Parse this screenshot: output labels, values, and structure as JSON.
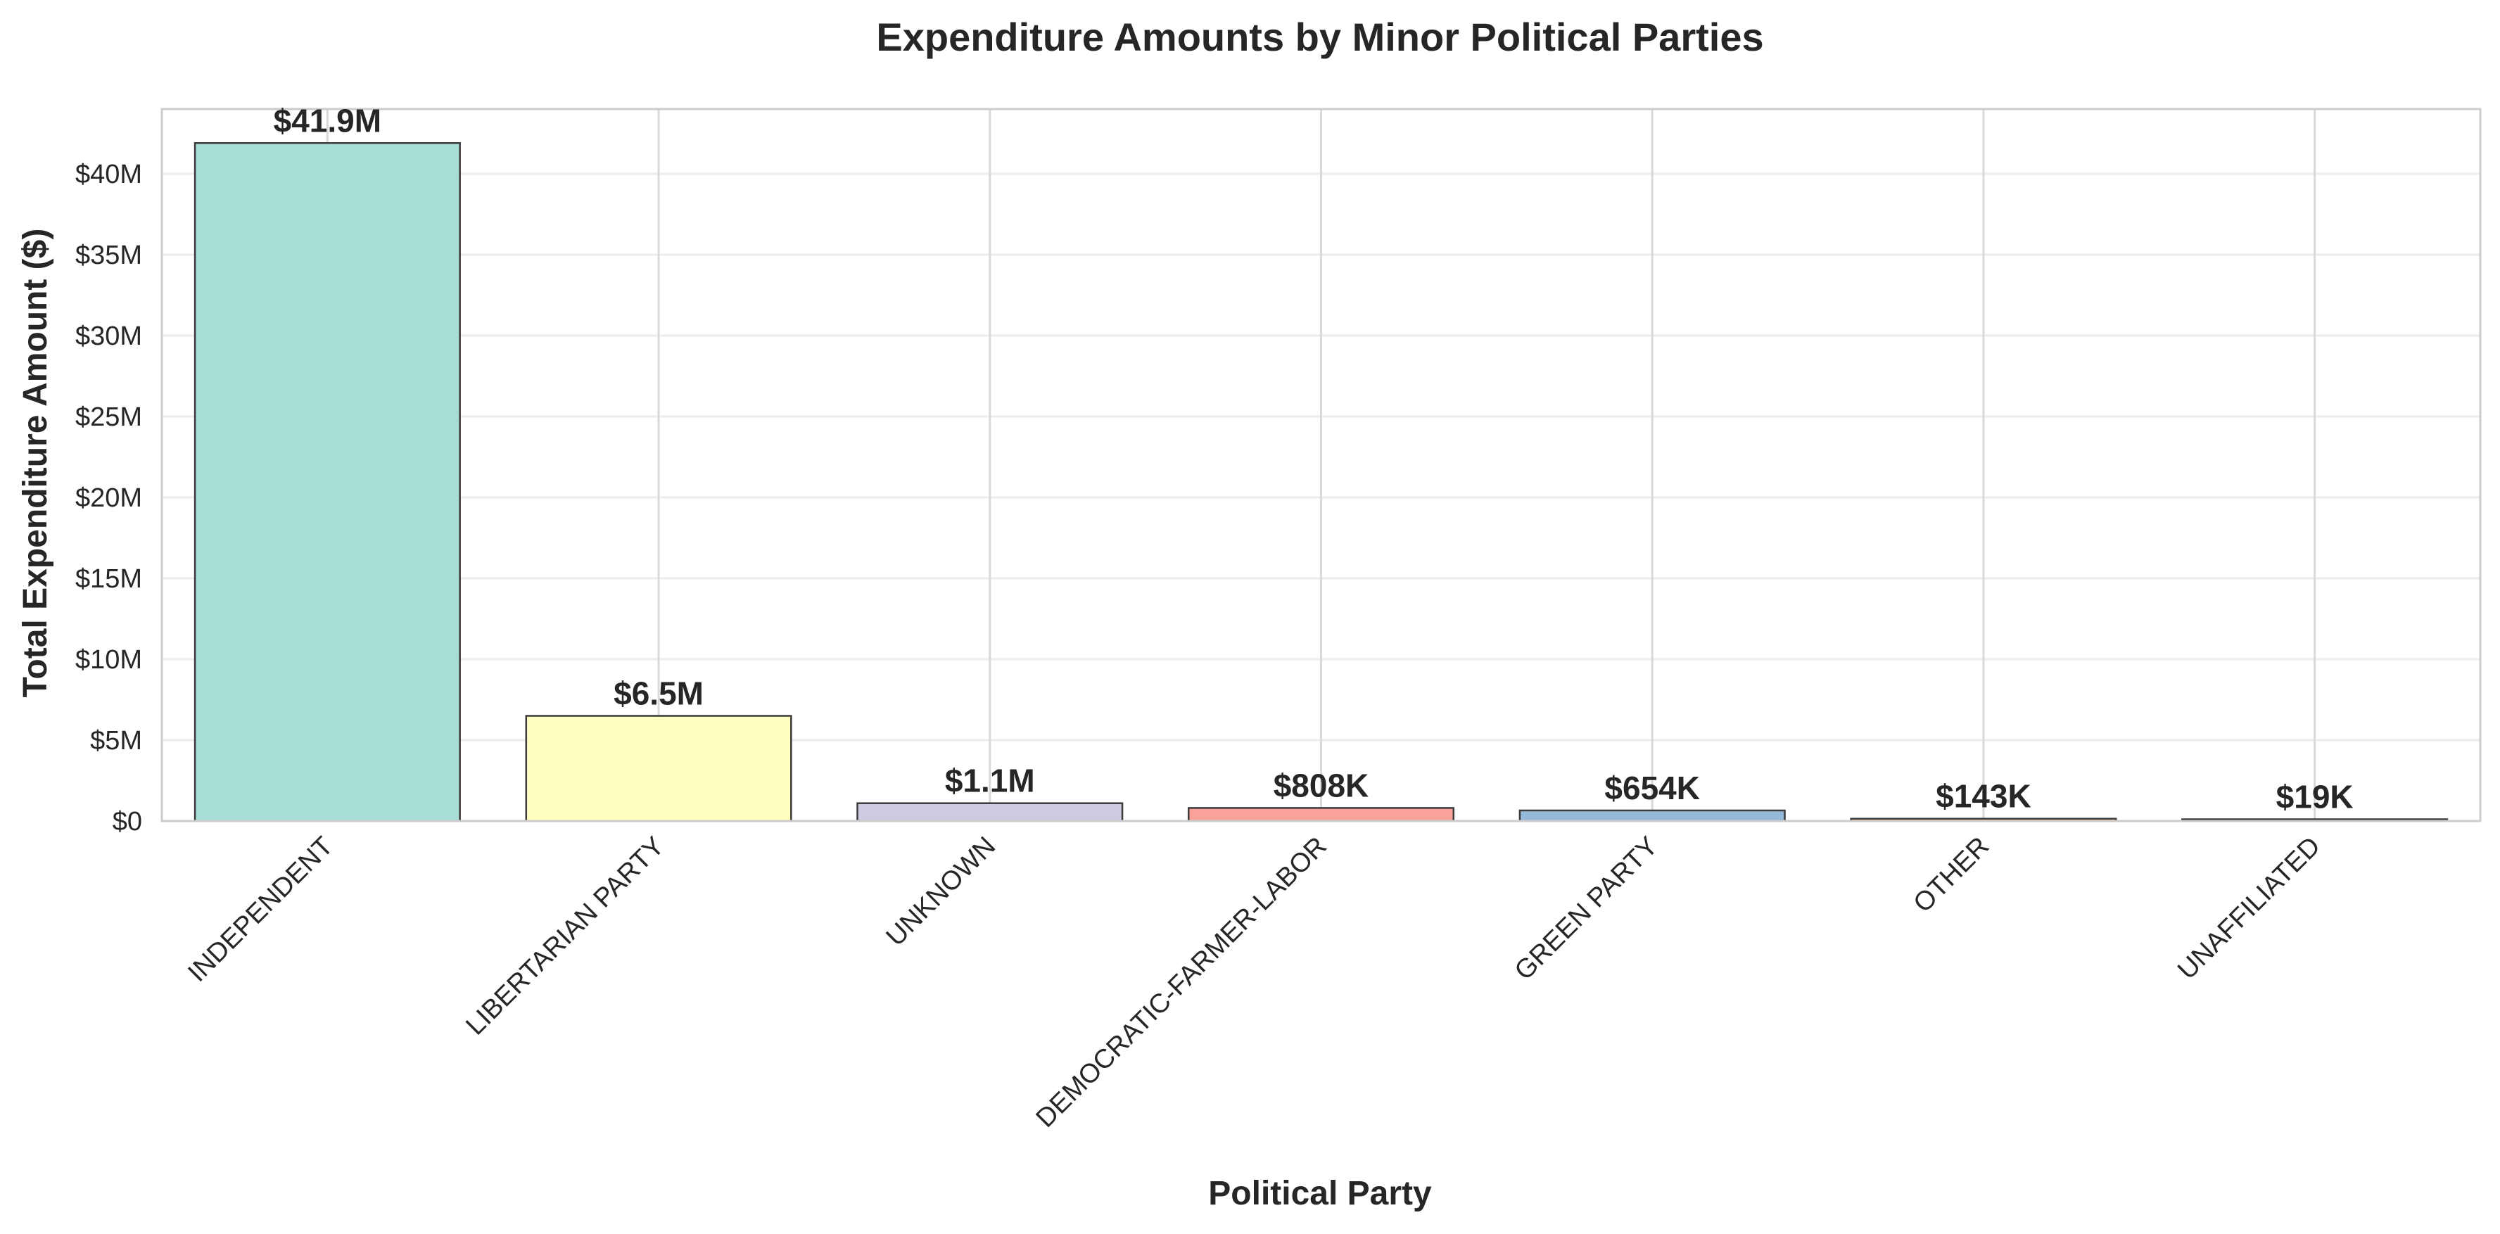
{
  "chart_data": {
    "type": "bar",
    "title": "Expenditure Amounts by Minor Political Parties",
    "xlabel": "Political Party",
    "ylabel": "Total Expenditure Amount ($)",
    "categories": [
      "INDEPENDENT",
      "LIBERTARIAN PARTY",
      "UNKNOWN",
      "DEMOCRATIC-FARMER-LABOR",
      "GREEN PARTY",
      "OTHER",
      "UNAFFILIATED"
    ],
    "values": [
      41900000,
      6500000,
      1100000,
      808000,
      654000,
      143000,
      19000
    ],
    "data_labels": [
      "$41.9M",
      "$6.5M",
      "$1.1M",
      "$808K",
      "$654K",
      "$143K",
      "$19K"
    ],
    "colors": [
      "#a6dcd4",
      "#ffffc0",
      "#ccc9e0",
      "#f9a097",
      "#92b8d8",
      "#f7b988",
      "#b9d98a"
    ],
    "ylim": [
      0,
      44000000
    ],
    "yticks": [
      0,
      5000000,
      10000000,
      15000000,
      20000000,
      25000000,
      30000000,
      35000000,
      40000000
    ],
    "ytick_labels": [
      "$0",
      "$5M",
      "$10M",
      "$15M",
      "$20M",
      "$25M",
      "$30M",
      "$35M",
      "$40M"
    ],
    "grid": true,
    "edge_color": "#3a3a3a",
    "grid_color": "#d9d9d9",
    "frame_color": "#cccccc"
  }
}
